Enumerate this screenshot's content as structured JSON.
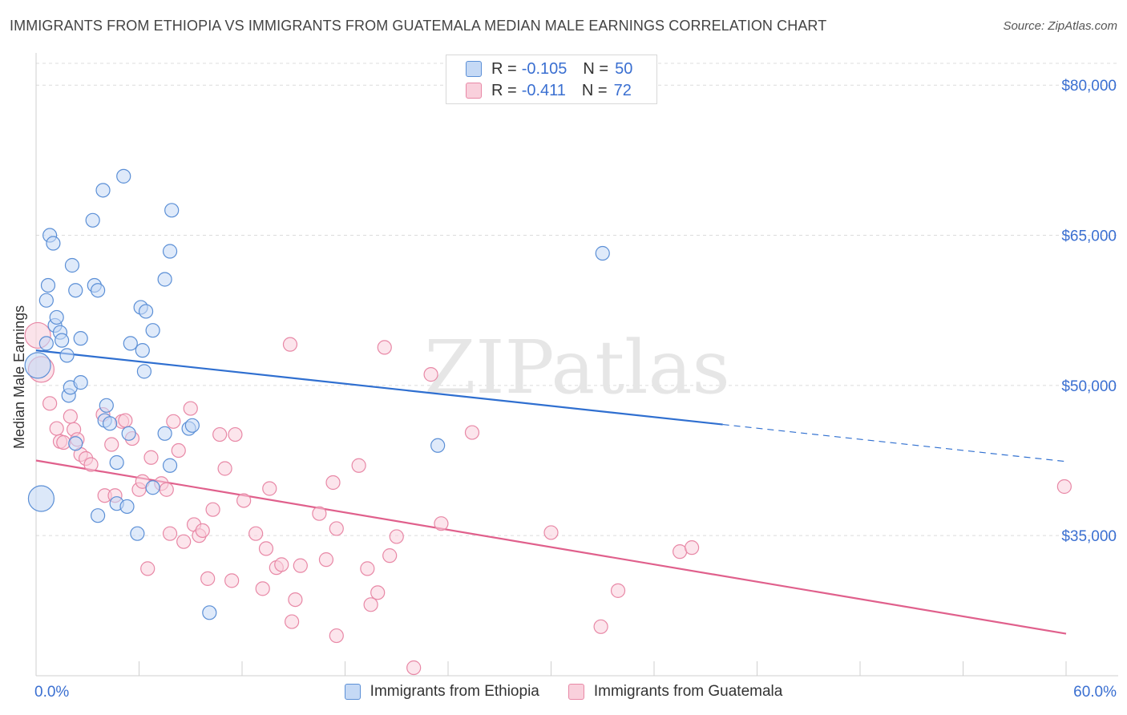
{
  "title": "IMMIGRANTS FROM ETHIOPIA VS IMMIGRANTS FROM GUATEMALA MEDIAN MALE EARNINGS CORRELATION CHART",
  "source": "Source: ZipAtlas.com",
  "watermark": "ZIPatlas",
  "legend_top": {
    "rows": [
      {
        "r_label": "R =",
        "r_value": "-0.105",
        "n_label": "N =",
        "n_value": "50"
      },
      {
        "r_label": "R =",
        "r_value": "-0.411",
        "n_label": "N =",
        "n_value": "72"
      }
    ]
  },
  "colors": {
    "ethiopia_fill": "#c5d9f5",
    "ethiopia_stroke": "#5b8fd6",
    "ethiopia_line": "#2f6fd0",
    "guatemala_fill": "#f9d0dc",
    "guatemala_stroke": "#e888a6",
    "guatemala_line": "#e0608c",
    "axis_text": "#3a6fd1"
  },
  "chart_data": {
    "type": "scatter",
    "title": "IMMIGRANTS FROM ETHIOPIA VS IMMIGRANTS FROM GUATEMALA MEDIAN MALE EARNINGS CORRELATION CHART",
    "xlabel": "",
    "ylabel": "Median Male Earnings",
    "xlim": [
      0,
      60
    ],
    "ylim": [
      21000,
      82500
    ],
    "x_tick_labels": [
      "0.0%",
      "60.0%"
    ],
    "y_ticks": [
      35000,
      50000,
      65000,
      80000
    ],
    "y_tick_labels": [
      "$35,000",
      "$50,000",
      "$65,000",
      "$80,000"
    ],
    "grid": true,
    "legend_position": "bottom",
    "series": [
      {
        "name": "Immigrants from Ethiopia",
        "r": -0.105,
        "n": 50,
        "trend": {
          "x0": 0,
          "y0": 53500,
          "x1": 40,
          "y1": 46100,
          "dash_x1": 60,
          "dash_y1": 42400
        },
        "points": [
          [
            0.1,
            52000
          ],
          [
            0.6,
            58500
          ],
          [
            0.6,
            54200
          ],
          [
            0.7,
            60000
          ],
          [
            0.8,
            65000
          ],
          [
            1.0,
            64200
          ],
          [
            1.1,
            56000
          ],
          [
            1.2,
            56800
          ],
          [
            1.4,
            55300
          ],
          [
            1.5,
            54500
          ],
          [
            1.8,
            53000
          ],
          [
            1.9,
            49000
          ],
          [
            2.0,
            49800
          ],
          [
            2.1,
            62000
          ],
          [
            2.3,
            59500
          ],
          [
            2.3,
            44200
          ],
          [
            2.6,
            50300
          ],
          [
            2.6,
            54700
          ],
          [
            3.3,
            66500
          ],
          [
            3.4,
            60000
          ],
          [
            3.6,
            59500
          ],
          [
            3.6,
            37000
          ],
          [
            3.9,
            69500
          ],
          [
            4.0,
            46500
          ],
          [
            4.1,
            48000
          ],
          [
            4.3,
            46200
          ],
          [
            4.7,
            42300
          ],
          [
            4.7,
            38200
          ],
          [
            5.1,
            70900
          ],
          [
            5.3,
            37900
          ],
          [
            5.4,
            45200
          ],
          [
            5.5,
            54200
          ],
          [
            5.9,
            35200
          ],
          [
            6.1,
            57800
          ],
          [
            6.2,
            53500
          ],
          [
            6.3,
            51400
          ],
          [
            6.4,
            57400
          ],
          [
            6.8,
            39800
          ],
          [
            6.8,
            55500
          ],
          [
            7.5,
            60600
          ],
          [
            7.5,
            45200
          ],
          [
            7.8,
            63400
          ],
          [
            7.8,
            42000
          ],
          [
            7.9,
            67500
          ],
          [
            8.9,
            45700
          ],
          [
            9.1,
            46000
          ],
          [
            10.1,
            27300
          ],
          [
            23.4,
            44000
          ],
          [
            33.0,
            63200
          ],
          [
            0.3,
            38700
          ]
        ]
      },
      {
        "name": "Immigrants from Guatemala",
        "r": -0.411,
        "n": 72,
        "trend": {
          "x0": 0,
          "y0": 42500,
          "x1": 60,
          "y1": 25200
        },
        "points": [
          [
            0.1,
            55000
          ],
          [
            0.3,
            51600
          ],
          [
            0.8,
            48200
          ],
          [
            1.2,
            45700
          ],
          [
            1.4,
            44400
          ],
          [
            1.6,
            44300
          ],
          [
            2.0,
            46900
          ],
          [
            2.2,
            45600
          ],
          [
            2.4,
            44600
          ],
          [
            2.6,
            43100
          ],
          [
            2.9,
            42700
          ],
          [
            3.2,
            42100
          ],
          [
            3.9,
            47100
          ],
          [
            4.0,
            39000
          ],
          [
            4.4,
            44100
          ],
          [
            4.6,
            39000
          ],
          [
            5.0,
            46400
          ],
          [
            5.2,
            46500
          ],
          [
            5.6,
            44700
          ],
          [
            6.0,
            39600
          ],
          [
            6.2,
            40400
          ],
          [
            6.5,
            31700
          ],
          [
            6.7,
            42800
          ],
          [
            7.3,
            40200
          ],
          [
            7.6,
            39600
          ],
          [
            7.8,
            35200
          ],
          [
            8.0,
            46400
          ],
          [
            8.3,
            43500
          ],
          [
            8.6,
            34400
          ],
          [
            9.0,
            47700
          ],
          [
            9.2,
            36100
          ],
          [
            9.5,
            35000
          ],
          [
            9.7,
            35500
          ],
          [
            10.0,
            30700
          ],
          [
            10.3,
            37600
          ],
          [
            10.7,
            45100
          ],
          [
            11.0,
            41700
          ],
          [
            11.4,
            30500
          ],
          [
            11.6,
            45100
          ],
          [
            12.1,
            38500
          ],
          [
            12.8,
            35200
          ],
          [
            13.2,
            29700
          ],
          [
            13.4,
            33700
          ],
          [
            13.6,
            39700
          ],
          [
            14.0,
            31800
          ],
          [
            14.3,
            32100
          ],
          [
            14.8,
            54100
          ],
          [
            14.9,
            26400
          ],
          [
            15.1,
            28600
          ],
          [
            15.4,
            32000
          ],
          [
            16.5,
            37200
          ],
          [
            16.9,
            32600
          ],
          [
            17.3,
            40300
          ],
          [
            17.5,
            35700
          ],
          [
            17.5,
            25000
          ],
          [
            18.8,
            42000
          ],
          [
            19.3,
            31700
          ],
          [
            19.5,
            28100
          ],
          [
            19.9,
            29300
          ],
          [
            20.3,
            53800
          ],
          [
            20.6,
            33000
          ],
          [
            21.0,
            34900
          ],
          [
            22.0,
            21800
          ],
          [
            23.0,
            51100
          ],
          [
            23.6,
            36200
          ],
          [
            25.4,
            45300
          ],
          [
            30.0,
            35300
          ],
          [
            32.9,
            25900
          ],
          [
            33.9,
            29500
          ],
          [
            37.5,
            33400
          ],
          [
            38.2,
            33800
          ],
          [
            59.9,
            39900
          ]
        ]
      }
    ]
  },
  "bottom_legend": [
    {
      "label": "Immigrants from Ethiopia"
    },
    {
      "label": "Immigrants from Guatemala"
    }
  ]
}
